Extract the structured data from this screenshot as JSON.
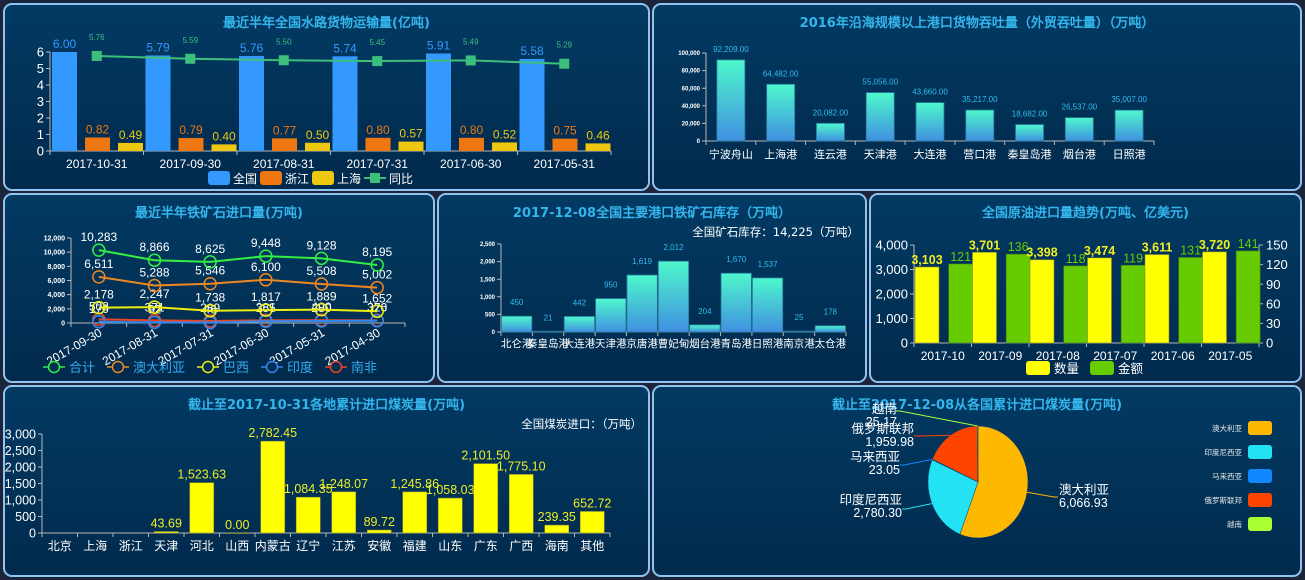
{
  "page": {
    "background": "#1b2438",
    "panel_border": "#8fc3f2"
  },
  "chart_data": [
    {
      "id": "water",
      "type": "bar",
      "title": "最近半年全国水路货物运输量(亿吨)",
      "categories": [
        "2017-10-31",
        "2017-09-30",
        "2017-08-31",
        "2017-07-31",
        "2017-06-30",
        "2017-05-31"
      ],
      "series": [
        {
          "name": "全国",
          "kind": "bar",
          "color": "#3399ff",
          "values": [
            6.0,
            5.79,
            5.76,
            5.74,
            5.91,
            5.58
          ]
        },
        {
          "name": "浙江",
          "kind": "bar",
          "color": "#ee7711",
          "values": [
            0.82,
            0.79,
            0.77,
            0.8,
            0.8,
            0.75
          ]
        },
        {
          "name": "上海",
          "kind": "bar",
          "color": "#eec711",
          "values": [
            0.49,
            0.4,
            0.5,
            0.57,
            0.52,
            0.46
          ]
        },
        {
          "name": "同比",
          "kind": "line",
          "color": "#3cbf7a",
          "values": [
            5.76,
            5.59,
            5.5,
            5.45,
            5.49,
            5.29
          ]
        }
      ],
      "yticks": [
        0,
        1,
        2,
        3,
        4,
        5,
        6
      ],
      "ylim": [
        0,
        6
      ],
      "legend": "bottom"
    },
    {
      "id": "ports",
      "type": "bar",
      "title": "2016年沿海规模以上港口货物吞吐量（外贸吞吐量）（万吨）",
      "categories": [
        "宁波舟山",
        "上海港",
        "连云港",
        "天津港",
        "大连港",
        "营口港",
        "秦皇岛港",
        "烟台港",
        "日照港"
      ],
      "values": [
        92209.0,
        64482.0,
        20082.0,
        55056.0,
        43660.0,
        35217.0,
        18682.0,
        26537.0,
        35007.0
      ],
      "value_labels": [
        "92,209.00",
        "64,482.00",
        "20,082.00",
        "55,056.00",
        "43,660.00",
        "35,217.00",
        "18,682.00",
        "26,537.00",
        "35,007.00"
      ],
      "yticks": [
        "0",
        "20,000",
        "40,000",
        "60,000",
        "80,000",
        "100,000"
      ],
      "ylim": [
        0,
        100000
      ]
    },
    {
      "id": "ironimport",
      "type": "line",
      "title": "最近半年铁矿石进口量(万吨)",
      "categories": [
        "2017-09-30",
        "2017-08-31",
        "2017-07-31",
        "2017-06-30",
        "2017-05-31",
        "2017-04-30"
      ],
      "series": [
        {
          "name": "合计",
          "color": "#33ee44",
          "values": [
            10283,
            8866,
            8625,
            9448,
            9128,
            8195
          ]
        },
        {
          "name": "澳大利亚",
          "color": "#ee8822",
          "values": [
            6511,
            5288,
            5546,
            6100,
            5508,
            5002
          ]
        },
        {
          "name": "巴西",
          "color": "#eeee11",
          "values": [
            2178,
            2247,
            1738,
            1817,
            1889,
            1652
          ]
        },
        {
          "name": "印度",
          "color": "#3388ee",
          "values": [
            170,
            92,
            46,
            255,
            280,
            320
          ]
        },
        {
          "name": "南非",
          "color": "#ee4422",
          "values": [
            508,
            371,
            289,
            381,
            400,
            376
          ]
        }
      ],
      "yticks": [
        "0",
        "2,000",
        "4,000",
        "6,000",
        "8,000",
        "10,000",
        "12,000"
      ],
      "ylim": [
        0,
        12000
      ],
      "legend": "bottom"
    },
    {
      "id": "ironstock",
      "type": "bar",
      "title": "2017-12-08全国主要港口铁矿石库存（万吨）",
      "note": "全国矿石库存：14,225（万吨）",
      "categories": [
        "北仑港",
        "秦皇岛港",
        "大连港",
        "天津港",
        "京唐港",
        "曹妃甸",
        "烟台港",
        "青岛港",
        "日照港",
        "南京港",
        "太仓港"
      ],
      "values": [
        450,
        21,
        442,
        950,
        1619,
        2012,
        204,
        1670,
        1537,
        25,
        178
      ],
      "value_labels": [
        "450",
        "21",
        "442",
        "950",
        "1,619",
        "2,012",
        "204",
        "1,670",
        "1,537",
        "25",
        "178"
      ],
      "yticks": [
        "0",
        "500",
        "1,000",
        "1,500",
        "2,000",
        "2,500"
      ],
      "ylim": [
        0,
        2500
      ]
    },
    {
      "id": "oil",
      "type": "bar",
      "title": "全国原油进口量趋势(万吨、亿美元)",
      "categories": [
        "2017-10",
        "2017-09",
        "2017-08",
        "2017-07",
        "2017-06",
        "2017-05"
      ],
      "series": [
        {
          "name": "数量",
          "color": "#ffff00",
          "label_color": "#eeee22",
          "axis": "left",
          "values": [
            3103,
            3701,
            3398,
            3474,
            3611,
            3720
          ],
          "labels": [
            "3,103",
            "3,701",
            "3,398",
            "3,474",
            "3,611",
            "3,720"
          ]
        },
        {
          "name": "金额",
          "color": "#66cc00",
          "label_color": "#66cc00",
          "axis": "right",
          "values": [
            121,
            136,
            118,
            119,
            131,
            141
          ],
          "labels": [
            "121",
            "136",
            "118",
            "119",
            "131",
            "141"
          ]
        }
      ],
      "yticks_left": [
        "0",
        "1,000",
        "2,000",
        "3,000",
        "4,000"
      ],
      "ylim_left": [
        0,
        4000
      ],
      "yticks_right": [
        "0",
        "30",
        "60",
        "90",
        "120",
        "150"
      ],
      "ylim_right": [
        0,
        150
      ],
      "legend": "bottom"
    },
    {
      "id": "coalregion",
      "type": "bar",
      "title": "截止至2017-10-31各地累计进口煤炭量(万吨)",
      "note": "全国煤炭进口：（万吨）",
      "categories": [
        "北京",
        "上海",
        "浙江",
        "天津",
        "河北",
        "山西",
        "内蒙古",
        "辽宁",
        "江苏",
        "安徽",
        "福建",
        "山东",
        "广东",
        "广西",
        "海南",
        "其他"
      ],
      "values": [
        null,
        null,
        null,
        43.69,
        1523.63,
        0.0,
        2782.45,
        1084.35,
        1248.07,
        89.72,
        1245.86,
        1058.03,
        2101.5,
        1775.1,
        239.35,
        652.72
      ],
      "value_labels": [
        "",
        "",
        "",
        "43.69",
        "1,523.63",
        "0.00",
        "2,782.45",
        "1,084.35",
        "1,248.07",
        "89.72",
        "1,245.86",
        "1,058.03",
        "2,101.50",
        "1,775.10",
        "239.35",
        "652.72"
      ],
      "yticks": [
        "0",
        "500",
        "1,000",
        "1,500",
        "2,000",
        "2,500",
        "3,000"
      ],
      "ylim": [
        0,
        3000
      ],
      "color": "#ffff00"
    },
    {
      "id": "coalcountry",
      "type": "pie",
      "title": "截止至2017-12-08从各国累计进口煤炭量(万吨)",
      "slices": [
        {
          "name": "澳大利亚",
          "value": 6066.93,
          "label": "6,066.93",
          "color": "#ffb800"
        },
        {
          "name": "印度尼西亚",
          "value": 2780.3,
          "label": "2,780.30",
          "color": "#22e2f4"
        },
        {
          "name": "马来西亚",
          "value": 23.05,
          "label": "23.05",
          "color": "#1188ff"
        },
        {
          "name": "俄罗斯联邦",
          "value": 1959.98,
          "label": "1,959.98",
          "color": "#ff4400"
        },
        {
          "name": "越南",
          "value": 25.17,
          "label": "25.17",
          "color": "#aaff33"
        }
      ],
      "legend": "right"
    }
  ]
}
